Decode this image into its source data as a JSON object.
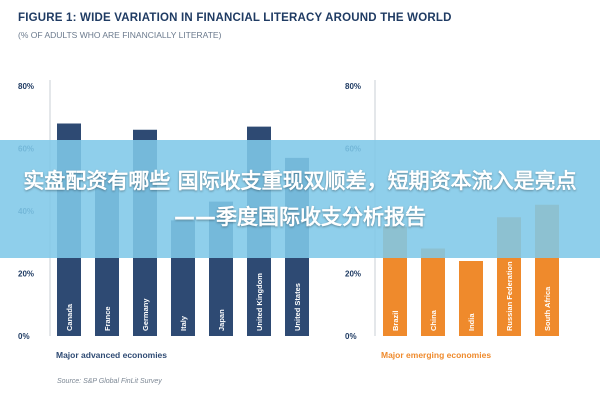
{
  "figure": {
    "title": "FIGURE 1: WIDE VARIATION IN FINANCIAL LITERACY AROUND THE WORLD",
    "subtitle": "(% OF ADULTS WHO ARE FINANCIALLY LITERATE)",
    "source": "Source: S&P Global FinLit Survey"
  },
  "banner": {
    "text": "实盘配资有哪些 国际收支重现双顺差，短期资本流入是亮点——季度国际收支分析报告"
  },
  "chart_data": [
    {
      "type": "bar",
      "xlabel": "Major advanced economies",
      "categories": [
        "Canada",
        "France",
        "Germany",
        "Italy",
        "Japan",
        "United Kingdom",
        "United States"
      ],
      "values": [
        68,
        52,
        66,
        37,
        43,
        67,
        57
      ],
      "ylim": [
        0,
        80
      ],
      "yticks": [
        "0%",
        "20%",
        "40%",
        "60%",
        "80%"
      ],
      "bar_color": "#2e4a73",
      "grid": false
    },
    {
      "type": "bar",
      "xlabel": "Major emerging economies",
      "categories": [
        "Brazil",
        "China",
        "India",
        "Russian Federation",
        "South Africa"
      ],
      "values": [
        35,
        28,
        24,
        38,
        42
      ],
      "ylim": [
        0,
        80
      ],
      "yticks": [
        "0%",
        "20%",
        "40%",
        "60%",
        "80%"
      ],
      "bar_color": "#ef8a2c",
      "grid": false
    }
  ]
}
